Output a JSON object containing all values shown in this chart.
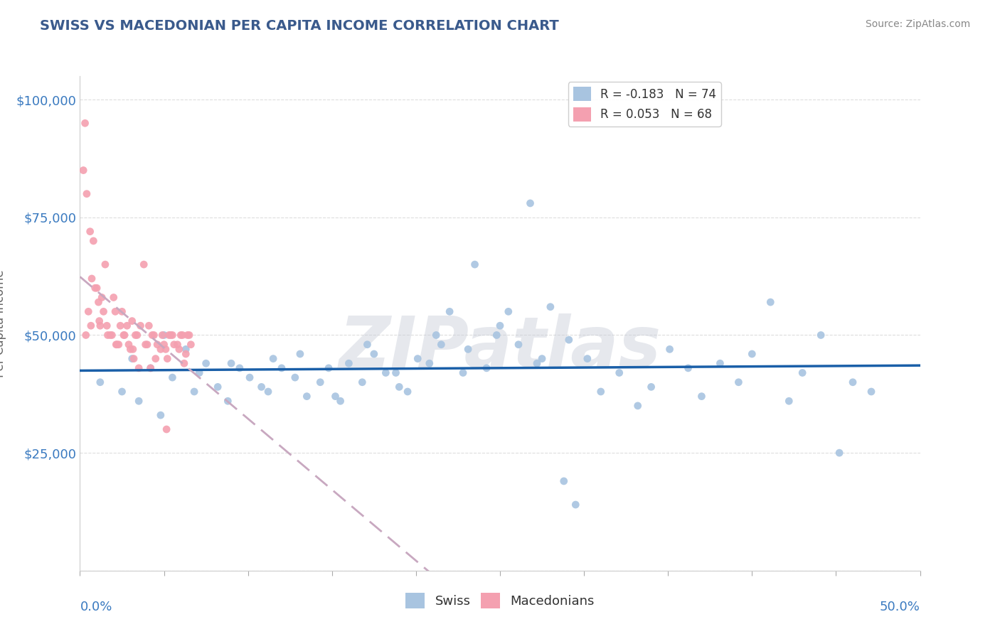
{
  "title": "SWISS VS MACEDONIAN PER CAPITA INCOME CORRELATION CHART",
  "source": "Source: ZipAtlas.com",
  "ylabel": "Per Capita Income",
  "xlim": [
    0.0,
    50.0
  ],
  "ylim": [
    0,
    105000
  ],
  "yticks": [
    0,
    25000,
    50000,
    75000,
    100000
  ],
  "ytick_labels": [
    "",
    "$25,000",
    "$50,000",
    "$75,000",
    "$100,000"
  ],
  "legend1_label": "R = -0.183   N = 74",
  "legend2_label": "R = 0.053   N = 68",
  "swiss_color": "#a8c4e0",
  "macedonian_color": "#f4a0b0",
  "swiss_line_color": "#1a5fa8",
  "macedonian_line_color": "#c8a8c0",
  "title_color": "#3a5a8c",
  "axis_color": "#3a7ac0",
  "swiss_scatter_x": [
    1.2,
    2.5,
    3.1,
    4.2,
    5.0,
    6.3,
    7.1,
    8.2,
    9.0,
    10.1,
    11.2,
    12.0,
    13.1,
    14.3,
    15.2,
    16.0,
    17.1,
    18.2,
    19.0,
    20.1,
    21.2,
    22.0,
    23.1,
    24.2,
    25.0,
    26.1,
    27.2,
    28.0,
    29.1,
    30.2,
    31.0,
    32.1,
    33.2,
    34.0,
    35.1,
    36.2,
    37.0,
    38.1,
    39.2,
    40.0,
    41.1,
    42.2,
    43.0,
    44.1,
    45.2,
    46.0,
    47.1,
    3.5,
    4.8,
    5.5,
    6.8,
    7.5,
    8.8,
    9.5,
    10.8,
    11.5,
    12.8,
    13.5,
    14.8,
    15.5,
    16.8,
    17.5,
    18.8,
    19.5,
    20.8,
    21.5,
    22.8,
    23.5,
    24.8,
    25.5,
    26.8,
    27.5,
    28.8,
    29.5
  ],
  "swiss_scatter_y": [
    40000,
    38000,
    45000,
    43000,
    50000,
    47000,
    42000,
    39000,
    44000,
    41000,
    38000,
    43000,
    46000,
    40000,
    37000,
    44000,
    48000,
    42000,
    39000,
    45000,
    50000,
    55000,
    47000,
    43000,
    52000,
    48000,
    44000,
    56000,
    49000,
    45000,
    38000,
    42000,
    35000,
    39000,
    47000,
    43000,
    37000,
    44000,
    40000,
    46000,
    57000,
    36000,
    42000,
    50000,
    25000,
    40000,
    38000,
    36000,
    33000,
    41000,
    38000,
    44000,
    36000,
    43000,
    39000,
    45000,
    41000,
    37000,
    43000,
    36000,
    40000,
    46000,
    42000,
    38000,
    44000,
    48000,
    42000,
    65000,
    50000,
    55000,
    78000,
    45000,
    19000,
    14000
  ],
  "macedonian_scatter_x": [
    0.3,
    0.5,
    0.8,
    1.0,
    1.2,
    1.5,
    1.8,
    2.0,
    2.3,
    2.5,
    2.8,
    3.0,
    3.3,
    3.5,
    3.8,
    4.0,
    4.3,
    4.5,
    4.8,
    5.0,
    5.3,
    5.5,
    5.8,
    6.0,
    6.3,
    6.5,
    0.4,
    0.6,
    0.9,
    1.1,
    1.4,
    1.6,
    1.9,
    2.1,
    2.4,
    2.6,
    2.9,
    3.1,
    3.4,
    3.6,
    3.9,
    4.1,
    4.4,
    4.6,
    4.9,
    5.1,
    5.4,
    5.6,
    5.9,
    6.1,
    6.4,
    6.6,
    0.2,
    0.7,
    1.3,
    2.2,
    3.2,
    4.2,
    5.2,
    6.2,
    0.35,
    0.65,
    1.15,
    1.65,
    2.15,
    2.65,
    3.15,
    5.15
  ],
  "macedonian_scatter_y": [
    95000,
    55000,
    70000,
    60000,
    52000,
    65000,
    50000,
    58000,
    48000,
    55000,
    52000,
    47000,
    50000,
    43000,
    65000,
    48000,
    50000,
    45000,
    47000,
    48000,
    50000,
    50000,
    48000,
    50000,
    46000,
    50000,
    80000,
    72000,
    60000,
    57000,
    55000,
    52000,
    50000,
    55000,
    52000,
    50000,
    48000,
    53000,
    50000,
    52000,
    48000,
    52000,
    50000,
    48000,
    50000,
    47000,
    50000,
    48000,
    47000,
    50000,
    50000,
    48000,
    85000,
    62000,
    58000,
    48000,
    45000,
    43000,
    45000,
    44000,
    50000,
    52000,
    53000,
    50000,
    48000,
    50000,
    47000,
    30000
  ]
}
